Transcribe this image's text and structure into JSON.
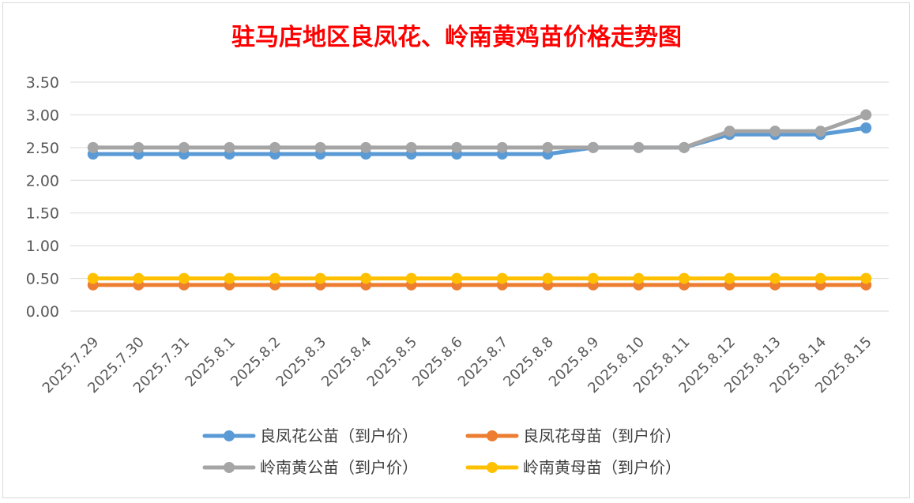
{
  "chart_data": {
    "type": "line",
    "title": "驻马店地区良凤花、岭南黄鸡苗价格走势图",
    "xlabel": "",
    "ylabel": "",
    "ylim": [
      0,
      3.5
    ],
    "yticks": [
      "0.00",
      "0.50",
      "1.00",
      "1.50",
      "2.00",
      "2.50",
      "3.00",
      "3.50"
    ],
    "grid": true,
    "legend_position": "bottom",
    "categories": [
      "2025.7.29",
      "2025.7.30",
      "2025.7.31",
      "2025.8.1",
      "2025.8.2",
      "2025.8.3",
      "2025.8.4",
      "2025.8.5",
      "2025.8.6",
      "2025.8.7",
      "2025.8.8",
      "2025.8.9",
      "2025.8.10",
      "2025.8.11",
      "2025.8.12",
      "2025.8.13",
      "2025.8.14",
      "2025.8.15"
    ],
    "series": [
      {
        "name": "良凤花公苗（到户价）",
        "color": "#5b9bd5",
        "values": [
          2.4,
          2.4,
          2.4,
          2.4,
          2.4,
          2.4,
          2.4,
          2.4,
          2.4,
          2.4,
          2.4,
          2.5,
          2.5,
          2.5,
          2.7,
          2.7,
          2.7,
          2.8
        ]
      },
      {
        "name": "良凤花母苗（到户价）",
        "color": "#ed7d31",
        "values": [
          0.4,
          0.4,
          0.4,
          0.4,
          0.4,
          0.4,
          0.4,
          0.4,
          0.4,
          0.4,
          0.4,
          0.4,
          0.4,
          0.4,
          0.4,
          0.4,
          0.4,
          0.4
        ]
      },
      {
        "name": "岭南黄公苗（到户价）",
        "color": "#a5a5a5",
        "values": [
          2.5,
          2.5,
          2.5,
          2.5,
          2.5,
          2.5,
          2.5,
          2.5,
          2.5,
          2.5,
          2.5,
          2.5,
          2.5,
          2.5,
          2.75,
          2.75,
          2.75,
          3.0
        ]
      },
      {
        "name": "岭南黄母苗（到户价）",
        "color": "#ffc000",
        "values": [
          0.5,
          0.5,
          0.5,
          0.5,
          0.5,
          0.5,
          0.5,
          0.5,
          0.5,
          0.5,
          0.5,
          0.5,
          0.5,
          0.5,
          0.5,
          0.5,
          0.5,
          0.5
        ]
      }
    ]
  },
  "colors": {
    "title": "#ff0000",
    "gridline": "#d9d9d9",
    "axis_text": "#595959",
    "legend_text": "#404040"
  }
}
